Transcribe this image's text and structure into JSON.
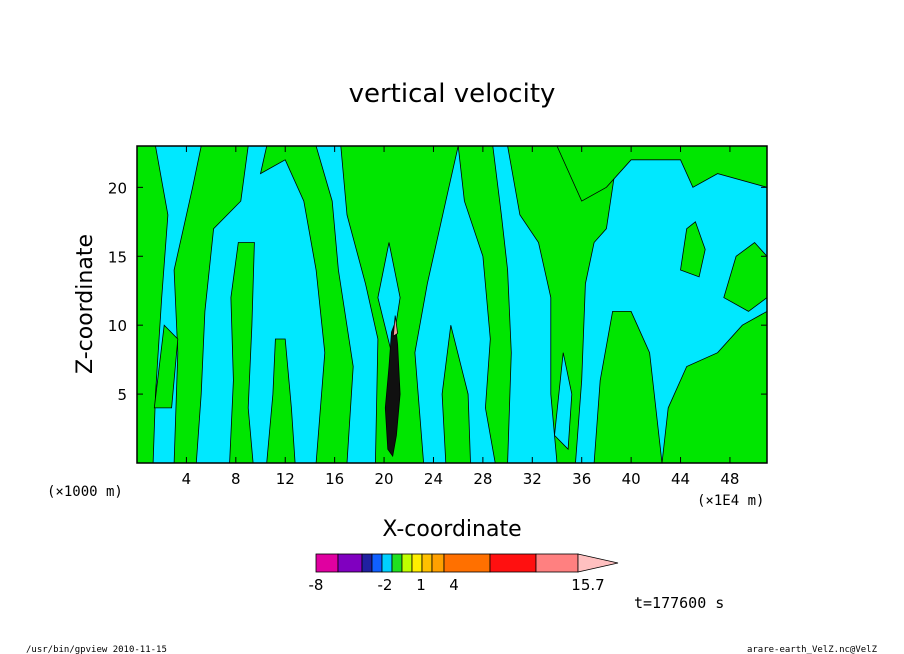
{
  "chart_data": {
    "type": "heatmap",
    "title": "vertical velocity",
    "xlabel": "X-coordinate",
    "ylabel": "Z-coordinate",
    "x_unit_left": "(×1000 m)",
    "x_unit_right": "(×1E4 m)",
    "x_ticks": [
      "4",
      "8",
      "12",
      "16",
      "20",
      "24",
      "28",
      "32",
      "36",
      "40",
      "44",
      "48"
    ],
    "x_tick_values": [
      4,
      8,
      12,
      16,
      20,
      24,
      28,
      32,
      36,
      40,
      44,
      48
    ],
    "xlim": [
      0,
      51
    ],
    "y_ticks": [
      "5",
      "10",
      "15",
      "20"
    ],
    "y_tick_values": [
      5,
      10,
      15,
      20
    ],
    "ylim": [
      0,
      23
    ],
    "time_label": "t=177600 s",
    "colorbar": {
      "labels": [
        "-8",
        "-2",
        "1",
        "4",
        "15.7"
      ],
      "label_values": [
        -8,
        -2,
        1,
        4,
        15.7
      ],
      "min": -8,
      "max": 15.7,
      "levels": [
        -8,
        -6,
        -4,
        -3,
        -2,
        -1,
        0,
        1,
        2,
        3,
        4,
        7,
        10,
        13,
        15.7
      ],
      "colors": [
        "#e000a0",
        "#8000c0",
        "#2020a0",
        "#1060ff",
        "#00d0ff",
        "#20e020",
        "#c0ff00",
        "#ffee00",
        "#ffc000",
        "#ffa000",
        "#ff7000",
        "#ff1010",
        "#ff8080",
        "#ffc0c0"
      ]
    },
    "dominant_colors": {
      "negative_weak": "#00e8ff",
      "positive_weak": "#00e600",
      "strong_positive": "#f2a0a0",
      "strong_negative": "#101010"
    }
  },
  "footer": {
    "left": "/usr/bin/gpview   2010-11-15",
    "right": "arare-earth_VelZ.nc@VelZ"
  }
}
